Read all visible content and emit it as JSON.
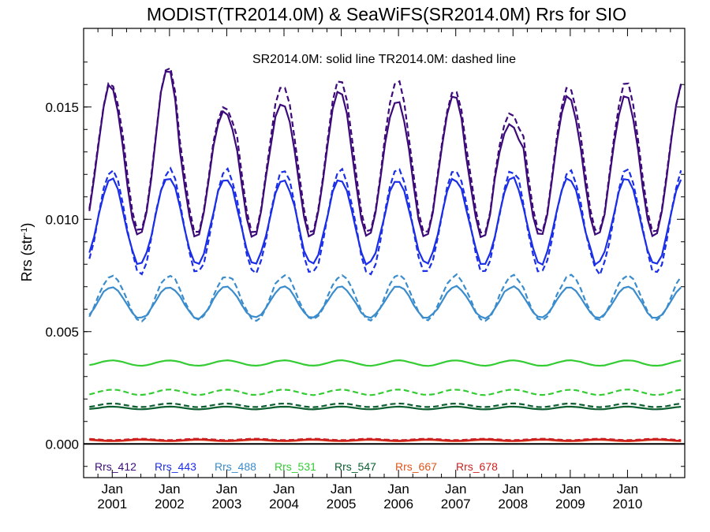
{
  "chart_data": {
    "type": "line",
    "title": "MODIST(TR2014.0M) & SeaWiFS(SR2014.0M)  Rrs for SIO",
    "annotation": "SR2014.0M: solid line    TR2014.0M: dashed line",
    "ylabel": "Rrs (str",
    "ylabel_sup": "-1",
    "ylabel_close": ")",
    "ylim": [
      -0.0015,
      0.0185
    ],
    "xlim": [
      2000.5,
      2011.0
    ],
    "yticks": [
      "0.000",
      "0.005",
      "0.010",
      "0.015"
    ],
    "xticks": [
      {
        "month": "Jan",
        "year": "2001"
      },
      {
        "month": "Jan",
        "year": "2002"
      },
      {
        "month": "Jan",
        "year": "2003"
      },
      {
        "month": "Jan",
        "year": "2004"
      },
      {
        "month": "Jan",
        "year": "2005"
      },
      {
        "month": "Jan",
        "year": "2006"
      },
      {
        "month": "Jan",
        "year": "2007"
      },
      {
        "month": "Jan",
        "year": "2008"
      },
      {
        "month": "Jan",
        "year": "2009"
      },
      {
        "month": "Jan",
        "year": "2010"
      }
    ],
    "zero_line": true,
    "legend_position": "bottom-left",
    "series": [
      {
        "name": "Rrs_412",
        "color": "#3d0a7a"
      },
      {
        "name": "Rrs_443",
        "color": "#1b2ee8"
      },
      {
        "name": "Rrs_488",
        "color": "#3a8ccc"
      },
      {
        "name": "Rrs_531",
        "color": "#33cc33"
      },
      {
        "name": "Rrs_547",
        "color": "#0b5e2e"
      },
      {
        "name": "Rrs_667",
        "color": "#e0541a"
      },
      {
        "name": "Rrs_678",
        "color": "#cc1f1f"
      }
    ],
    "seasonal_model": {
      "Rrs_412": {
        "solid": {
          "mean": 0.01245,
          "amp": 0.0034,
          "peak_month": 11.6
        },
        "dashed": {
          "mean": 0.0128,
          "amp": 0.0036,
          "peak_month": 11.7
        }
      },
      "Rrs_443": {
        "solid": {
          "mean": 0.0099,
          "amp": 0.0019,
          "peak_month": 11.8
        },
        "dashed": {
          "mean": 0.0099,
          "amp": 0.0023,
          "peak_month": 11.9
        }
      },
      "Rrs_488": {
        "solid": {
          "mean": 0.0063,
          "amp": 0.0007,
          "peak_month": 11.9
        },
        "dashed": {
          "mean": 0.0065,
          "amp": 0.001,
          "peak_month": 12.0
        }
      },
      "Rrs_531": {
        "solid": {
          "mean": 0.0036,
          "amp": 0.00012,
          "peak_month": 12.0
        },
        "dashed": {
          "mean": 0.0023,
          "amp": 0.00012,
          "peak_month": 12.0
        }
      },
      "Rrs_547": {
        "solid": {
          "mean": 0.0016,
          "amp": 6e-05,
          "peak_month": 12.0
        },
        "dashed": {
          "mean": 0.00172,
          "amp": 8e-05,
          "peak_month": 12.0
        }
      },
      "Rrs_667": {
        "solid": {
          "mean": 0.00015,
          "amp": 3e-05,
          "peak_month": 6.0
        },
        "dashed": {
          "mean": 0.00018,
          "amp": 3e-05,
          "peak_month": 6.0
        }
      },
      "Rrs_678": {
        "solid": {
          "mean": 0.00017,
          "amp": 3e-05,
          "peak_month": 6.0
        },
        "dashed": {
          "mean": 0.0002,
          "amp": 3e-05,
          "peak_month": 6.0
        }
      }
    },
    "peak_values_412_solid": [
      0.016,
      0.0167,
      0.0148,
      0.0152,
      0.0157,
      0.0153,
      0.0155,
      0.0142,
      0.0155,
      0.0155,
      0.0161
    ],
    "peak_values_412_dashed": [
      0.0161,
      0.0168,
      0.015,
      0.016,
      0.0162,
      0.0162,
      0.0157,
      0.0147,
      0.0159,
      0.0161,
      0.0161
    ],
    "trough_values_412": [
      0.0098,
      0.009,
      0.0092,
      0.0088,
      0.0092,
      0.009,
      0.0092,
      0.009,
      0.009,
      0.0096,
      0.0099
    ]
  }
}
